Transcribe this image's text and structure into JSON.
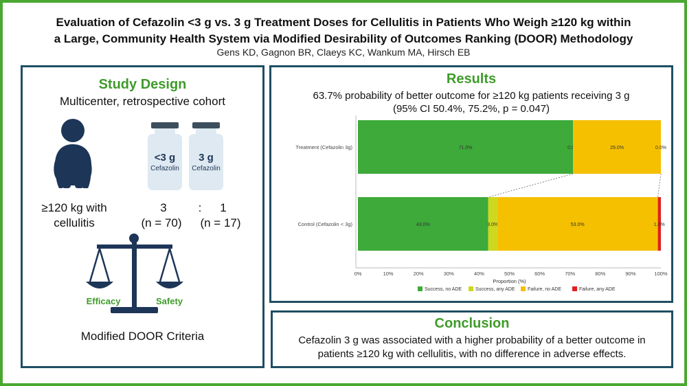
{
  "header": {
    "title_line1": "Evaluation of Cefazolin <3 g vs. 3 g Treatment Doses for Cellulitis in Patients Who Weigh ≥120 kg within",
    "title_line2": "a Large, Community Health System via Modified Desirability of Outcomes Ranking (DOOR) Methodology",
    "authors": "Gens KD, Gagnon BR, Claeys KC, Wankum MA, Hirsch EB"
  },
  "study_design": {
    "heading": "Study Design",
    "subtitle": "Multicenter, retrospective cohort",
    "population_line1": "≥120 kg with",
    "population_line2": "cellulitis",
    "vial1_dose": "<3 g",
    "vial1_drug": "Cefazolin",
    "vial2_dose": "3 g",
    "vial2_drug": "Cefazolin",
    "ratio_left": "3",
    "ratio_colon": ":",
    "ratio_right": "1",
    "n_left": "(n = 70)",
    "n_right": "(n = 17)",
    "scale_left": "Efficacy",
    "scale_right": "Safety",
    "criteria": "Modified DOOR Criteria"
  },
  "results": {
    "heading": "Results",
    "line1": "63.7% probability of better outcome for ≥120 kg patients receiving 3 g",
    "line2": "(95% CI 50.4%, 75.2%, p = 0.047)"
  },
  "conclusion": {
    "heading": "Conclusion",
    "line1": "Cefazolin 3 g was associated with a higher probability of a better outcome in",
    "line2": "patients ≥120 kg with cellulitis, with no difference in adverse effects."
  },
  "colors": {
    "success_no_ade": "#3daa3a",
    "success_any_ade": "#cdd81e",
    "failure_no_ade": "#f5c000",
    "failure_any_ade": "#e02020"
  },
  "chart_data": {
    "type": "bar",
    "orientation": "horizontal",
    "stacked": true,
    "categories": [
      "Treatment (Cefazolin 3g)",
      "Control (Cefazolin < 3g)"
    ],
    "series": [
      {
        "name": "Success, no ADE",
        "values": [
          71.0,
          43.0
        ],
        "labels": [
          "71.0%",
          "43.0%"
        ]
      },
      {
        "name": "Success, any ADE",
        "values": [
          0.0,
          3.0
        ],
        "labels": [
          "0.0%",
          "3.0%"
        ]
      },
      {
        "name": "Failure, no ADE",
        "values": [
          29.0,
          53.0
        ],
        "labels": [
          "29.0%",
          "53.0%"
        ]
      },
      {
        "name": "Failure, any ADE",
        "values": [
          0.0,
          1.0
        ],
        "labels": [
          "0.0%",
          "1.0%"
        ]
      }
    ],
    "xlabel": "Proportion (%)",
    "xlim": [
      0,
      100
    ],
    "xticks": [
      "0%",
      "10%",
      "20%",
      "30%",
      "40%",
      "50%",
      "60%",
      "70%",
      "80%",
      "90%",
      "100%"
    ],
    "legend_position": "bottom"
  }
}
